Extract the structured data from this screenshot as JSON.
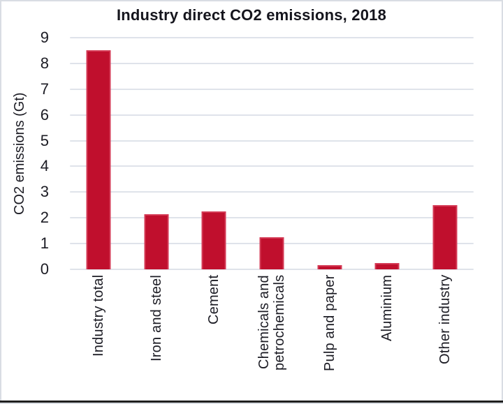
{
  "chart_data": {
    "type": "bar",
    "title": "Industry direct CO2 emissions, 2018",
    "ylabel": "CO2 emissions (Gt)",
    "xlabel": "",
    "categories": [
      "Industry total",
      "Iron and steel",
      "Cement",
      "Chemicals and petrochemicals",
      "Pulp and paper",
      "Aluminium",
      "Other industry"
    ],
    "values": [
      8.5,
      2.15,
      2.25,
      1.25,
      0.15,
      0.25,
      2.5
    ],
    "ylim": [
      0,
      9
    ],
    "yticks": [
      0,
      1,
      2,
      3,
      4,
      5,
      6,
      7,
      8,
      9
    ],
    "grid": true,
    "legend": "none",
    "x_tick_rotation_deg": 90,
    "colors": {
      "bar": "#c00f2d",
      "bar_edge": "#d43a55",
      "gridline": "#dfe3ea",
      "text": "#1c1c24",
      "title_text": "#15151d",
      "frame_border": "#d9dde3",
      "bottom_rule": "#1f1f1f",
      "background": "#ffffff"
    }
  }
}
